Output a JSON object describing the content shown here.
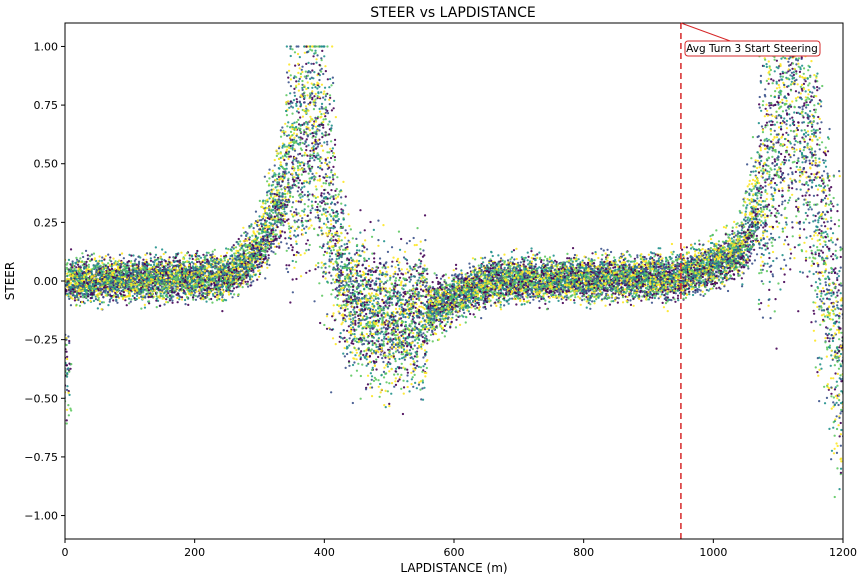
{
  "chart_data": {
    "type": "scatter",
    "title": "STEER vs LAPDISTANCE",
    "xlabel": "LAPDISTANCE (m)",
    "ylabel": "STEER",
    "xlim": [
      0,
      1200
    ],
    "ylim": [
      -1.1,
      1.1
    ],
    "xticks": [
      0,
      200,
      400,
      600,
      800,
      1000,
      1200
    ],
    "yticks": [
      -1.0,
      -0.75,
      -0.5,
      -0.25,
      0.0,
      0.25,
      0.5,
      0.75,
      1.0
    ],
    "xtick_labels": [
      "0",
      "200",
      "400",
      "600",
      "800",
      "1000",
      "1200"
    ],
    "ytick_labels": [
      "−1.00",
      "−0.75",
      "−0.50",
      "−0.25",
      "0.00",
      "0.25",
      "0.50",
      "0.75",
      "1.00"
    ],
    "colormap": [
      "#440154",
      "#3b528b",
      "#21918c",
      "#5ec962",
      "#fde725"
    ],
    "annotation": {
      "text": "Avg Turn 3 Start Steering",
      "x": 950,
      "color": "#d62728"
    },
    "series_profile": [
      {
        "x": 0,
        "y": 0.0
      },
      {
        "x": 250,
        "y": 0.02
      },
      {
        "x": 300,
        "y": 0.15
      },
      {
        "x": 355,
        "y": 0.55
      },
      {
        "x": 385,
        "y": 0.7
      },
      {
        "x": 405,
        "y": 0.4
      },
      {
        "x": 430,
        "y": -0.05
      },
      {
        "x": 470,
        "y": -0.15
      },
      {
        "x": 520,
        "y": -0.18
      },
      {
        "x": 580,
        "y": -0.1
      },
      {
        "x": 650,
        "y": 0.0
      },
      {
        "x": 950,
        "y": 0.02
      },
      {
        "x": 1040,
        "y": 0.12
      },
      {
        "x": 1080,
        "y": 0.45
      },
      {
        "x": 1120,
        "y": 0.85
      },
      {
        "x": 1145,
        "y": 0.7
      },
      {
        "x": 1170,
        "y": 0.1
      },
      {
        "x": 1200,
        "y": -0.4
      }
    ]
  }
}
